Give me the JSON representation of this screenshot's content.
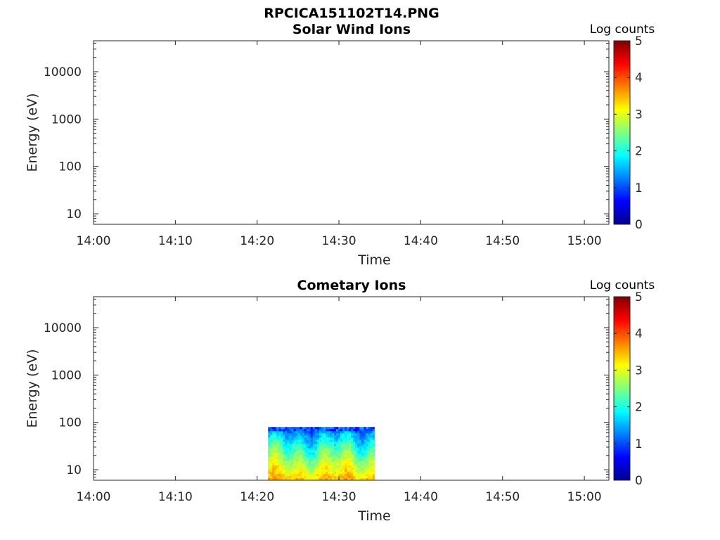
{
  "figure": {
    "title": "RPCICA151102T14.PNG"
  },
  "chart_data": [
    {
      "type": "heatmap",
      "title": "Solar Wind Ions",
      "xlabel": "Time",
      "ylabel": "Energy (eV)",
      "y_scale": "log",
      "x_range": [
        "14:00",
        "15:03"
      ],
      "y_range": [
        6,
        45000
      ],
      "x_ticks": [
        "14:00",
        "14:10",
        "14:20",
        "14:30",
        "14:40",
        "14:50",
        "15:00"
      ],
      "y_ticks": [
        10,
        100,
        1000,
        10000
      ],
      "y_tick_labels": [
        "10",
        "100",
        "1000",
        "10000"
      ],
      "colorbar": {
        "label": "Log counts",
        "range": [
          0,
          5
        ],
        "ticks": [
          "0",
          "1",
          "2",
          "3",
          "4",
          "5"
        ],
        "colormap": "jet"
      },
      "data_blocks": []
    },
    {
      "type": "heatmap",
      "title": "Cometary Ions",
      "xlabel": "Time",
      "ylabel": "Energy (eV)",
      "y_scale": "log",
      "x_range": [
        "14:00",
        "15:03"
      ],
      "y_range": [
        6,
        45000
      ],
      "x_ticks": [
        "14:00",
        "14:10",
        "14:20",
        "14:30",
        "14:40",
        "14:50",
        "15:00"
      ],
      "y_ticks": [
        10,
        100,
        1000,
        10000
      ],
      "y_tick_labels": [
        "10",
        "100",
        "1000",
        "10000"
      ],
      "colorbar": {
        "label": "Log counts",
        "range": [
          0,
          5
        ],
        "ticks": [
          "0",
          "1",
          "2",
          "3",
          "4",
          "5"
        ],
        "colormap": "jet"
      },
      "data_blocks": [
        {
          "time_start": "14:21:20",
          "time_end": "14:34:20",
          "energy_min_eV": 6,
          "energy_max_eV": 80,
          "log_counts_low_energy": 3.4,
          "log_counts_high_energy": 1.0
        }
      ]
    }
  ]
}
